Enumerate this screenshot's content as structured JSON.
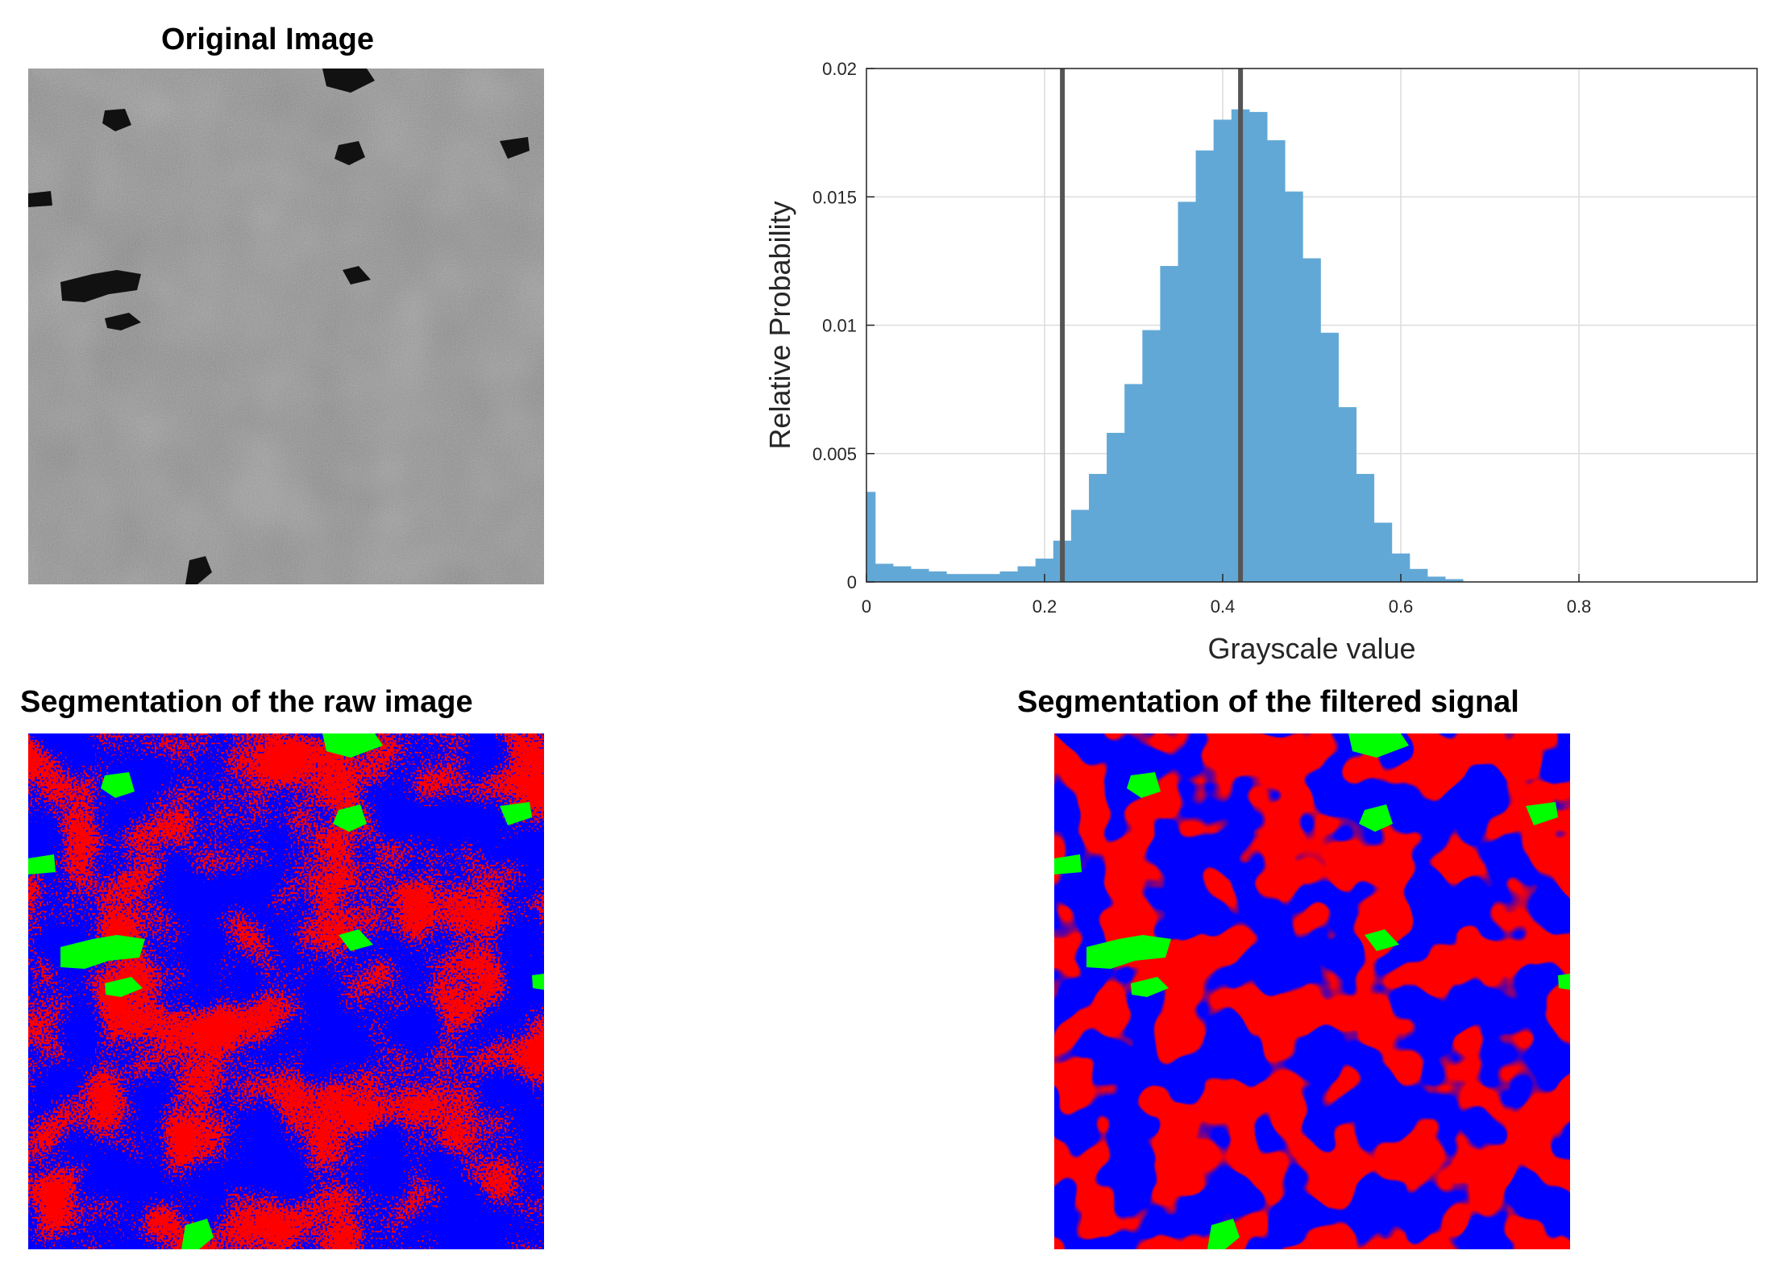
{
  "panels": {
    "original": {
      "title": "Original Image"
    },
    "raw_seg": {
      "title": "Segmentation of the raw image"
    },
    "filtered_seg": {
      "title": "Segmentation of the filtered signal"
    }
  },
  "colors": {
    "bar": "#62a8d6",
    "threshold": "#555555",
    "seg_red": "#ff0000",
    "seg_blue": "#0000ff",
    "seg_green": "#00ff00",
    "gray_base": "#8a8a8a"
  },
  "chart_data": {
    "type": "bar",
    "xlabel": "Grayscale value",
    "ylabel": "Relative Probability",
    "xlim": [
      0,
      1
    ],
    "ylim": [
      0,
      0.02
    ],
    "xticks": [
      0,
      0.2,
      0.4,
      0.6,
      0.8
    ],
    "xtick_labels": [
      "0",
      "0.2",
      "0.4",
      "0.6",
      "0.8"
    ],
    "yticks": [
      0,
      0.005,
      0.01,
      0.015,
      0.02
    ],
    "ytick_labels": [
      "0",
      "0.005",
      "0.01",
      "0.015",
      "0.02"
    ],
    "grid": true,
    "thresholds": [
      0.22,
      0.42
    ],
    "bin_centers": [
      0.0,
      0.02,
      0.04,
      0.06,
      0.08,
      0.1,
      0.12,
      0.14,
      0.16,
      0.18,
      0.2,
      0.22,
      0.24,
      0.26,
      0.28,
      0.3,
      0.32,
      0.34,
      0.36,
      0.38,
      0.4,
      0.42,
      0.44,
      0.46,
      0.48,
      0.5,
      0.52,
      0.54,
      0.56,
      0.58,
      0.6,
      0.62,
      0.64,
      0.66
    ],
    "values": [
      0.0035,
      0.0007,
      0.0006,
      0.0005,
      0.0004,
      0.0003,
      0.0003,
      0.0003,
      0.0004,
      0.0006,
      0.0009,
      0.0016,
      0.0028,
      0.0042,
      0.0058,
      0.0077,
      0.0098,
      0.0123,
      0.0148,
      0.0168,
      0.018,
      0.0184,
      0.0183,
      0.0172,
      0.0152,
      0.0126,
      0.0097,
      0.0068,
      0.0042,
      0.0023,
      0.0011,
      0.0005,
      0.0002,
      0.0001
    ]
  }
}
